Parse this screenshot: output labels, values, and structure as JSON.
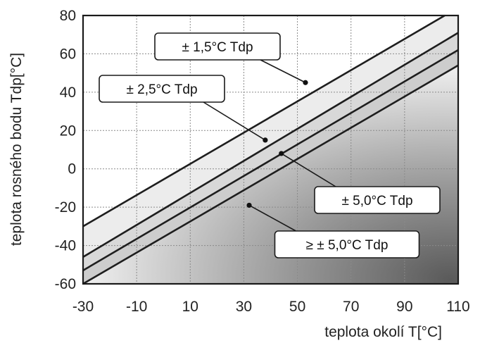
{
  "chart_data": {
    "type": "line",
    "xlabel": "teplota okolí  T[°C]",
    "ylabel": "teplota rosného bodu  Tdp[°C]",
    "xlim": [
      -30,
      110
    ],
    "ylim": [
      -60,
      80
    ],
    "x_ticks": [
      -30,
      -10,
      10,
      30,
      50,
      70,
      90,
      110
    ],
    "y_ticks": [
      80,
      60,
      40,
      20,
      0,
      -20,
      -40,
      -60
    ],
    "grid": true,
    "series": [
      {
        "x": [
          -30,
          105
        ],
        "y": [
          -30,
          80
        ]
      },
      {
        "x": [
          -30,
          110
        ],
        "y": [
          -46,
          71
        ]
      },
      {
        "x": [
          -30,
          110
        ],
        "y": [
          -53,
          62
        ]
      },
      {
        "x": [
          -30,
          110
        ],
        "y": [
          -60,
          54
        ]
      }
    ],
    "annotations": [
      {
        "text": "± 1,5°C Tdp",
        "x": 53,
        "y": 45
      },
      {
        "text": "± 2,5°C Tdp",
        "x": 38,
        "y": 15
      },
      {
        "text": "± 5,0°C Tdp",
        "x": 44,
        "y": 8
      },
      {
        "text": "≥ ± 5,0°C Tdp",
        "x": 32,
        "y": -19
      }
    ]
  },
  "colors": {
    "background": "#ffffff",
    "zone_light": "#ececec",
    "zone_mid": "#d8d8d8",
    "zone_dark": "#cdcdcd",
    "lines": "#1e1e1e"
  }
}
